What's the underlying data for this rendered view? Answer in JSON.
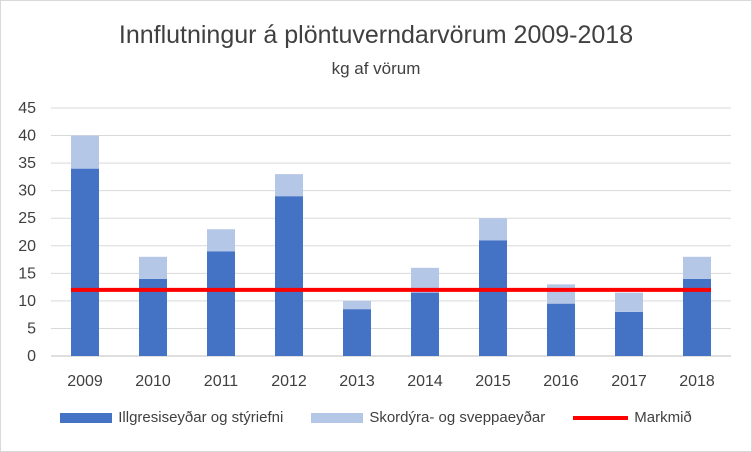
{
  "chart_data": {
    "type": "bar",
    "stacked": true,
    "title": "Innflutningur á plöntuverndarvörum 2009-2018",
    "subtitle": "kg af vörum",
    "categories": [
      "2009",
      "2010",
      "2011",
      "2012",
      "2013",
      "2014",
      "2015",
      "2016",
      "2017",
      "2018"
    ],
    "series": [
      {
        "name": "Illgresiseyðar og stýriefni",
        "color": "#4472c4",
        "values": [
          34,
          14,
          19,
          29,
          8.5,
          11.5,
          21,
          9.5,
          8,
          14
        ]
      },
      {
        "name": "Skordýra- og sveppaeyðar",
        "color": "#b4c7e7",
        "values": [
          6,
          4,
          4,
          4,
          1.5,
          4.5,
          4,
          3.5,
          3.5,
          4
        ]
      }
    ],
    "target_line": {
      "name": "Markmið",
      "value": 12,
      "color": "#ff0000"
    },
    "ylim": [
      0,
      45
    ],
    "yticks": [
      0,
      5,
      10,
      15,
      20,
      25,
      30,
      35,
      40,
      45
    ],
    "grid": true,
    "legend_position": "bottom"
  }
}
